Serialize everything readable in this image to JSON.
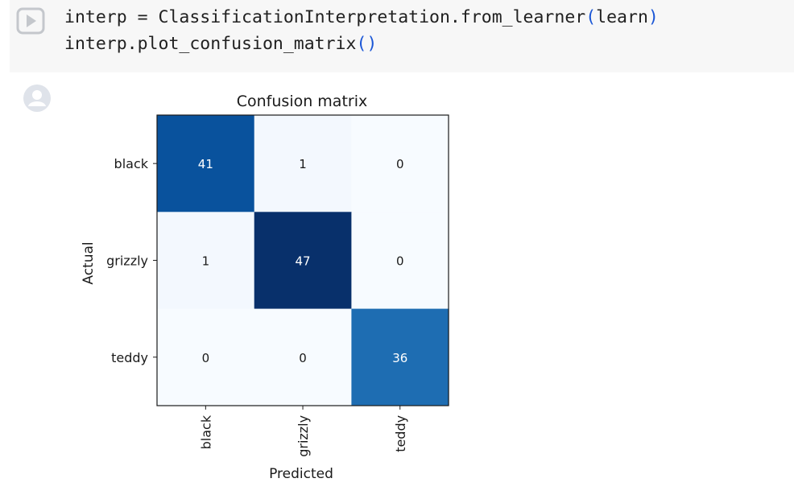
{
  "code_cell": {
    "line1_prefix": "interp = ClassificationInterpretation.from_learner",
    "line1_open_paren": "(",
    "line1_arg": "learn",
    "line1_close_paren": ")",
    "line2_prefix": "interp.plot_confusion_matrix",
    "line2_parens": "()"
  },
  "icons": {
    "run": "play-circle-icon",
    "output": "avatar-icon"
  },
  "colors": {
    "cell_background": "#f7f7f7",
    "paren": "#1a56d6",
    "icon": "#c4c7cc",
    "cmap_low": "#f7fbff",
    "cmap_high": "#08306b"
  },
  "chart_data": {
    "type": "heatmap",
    "title": "Confusion matrix",
    "xlabel": "Predicted",
    "ylabel": "Actual",
    "x_categories": [
      "black",
      "grizzly",
      "teddy"
    ],
    "y_categories": [
      "black",
      "grizzly",
      "teddy"
    ],
    "matrix": [
      [
        41,
        1,
        0
      ],
      [
        1,
        47,
        0
      ],
      [
        0,
        0,
        36
      ]
    ],
    "colormap": "Blues",
    "vmin": 0,
    "vmax": 47
  }
}
